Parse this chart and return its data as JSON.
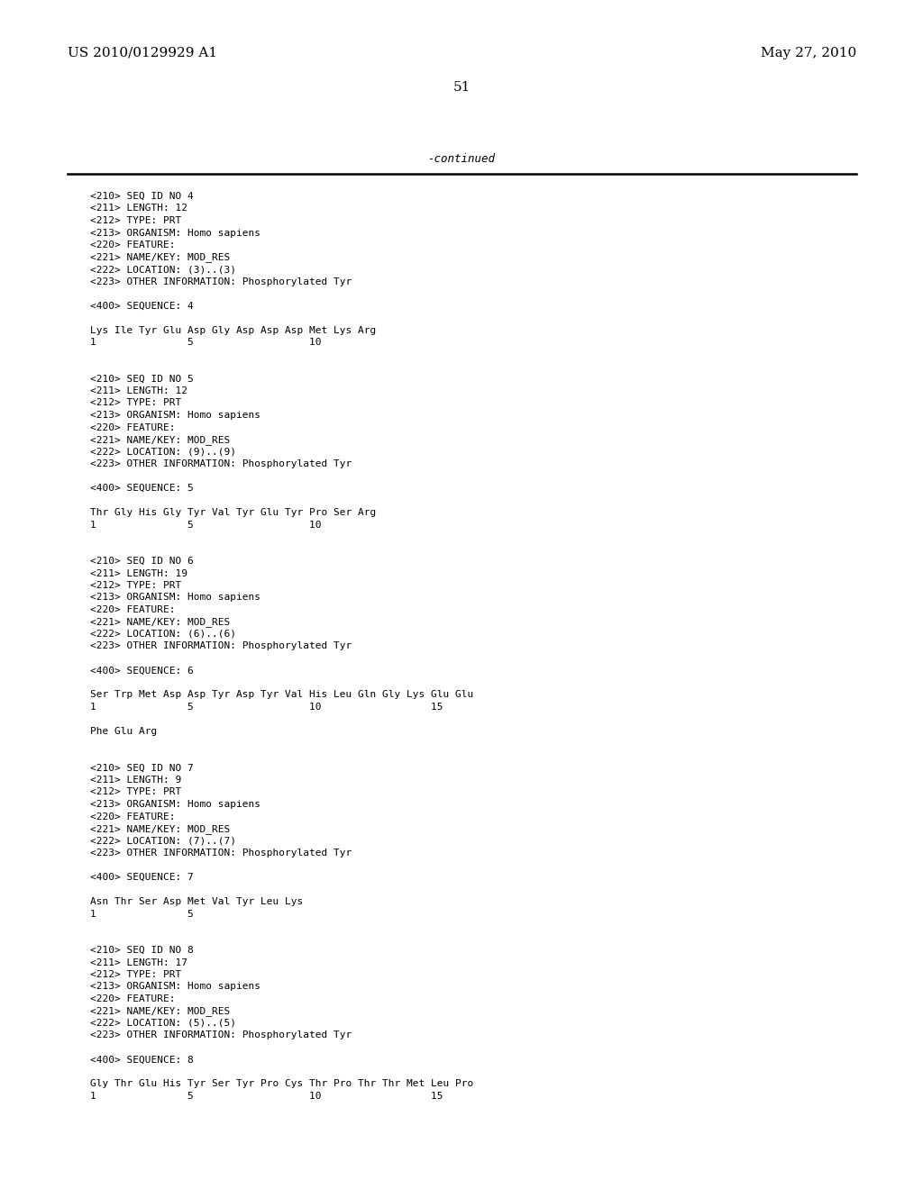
{
  "header_left": "US 2010/0129929 A1",
  "header_right": "May 27, 2010",
  "page_number": "51",
  "continued_text": "-continued",
  "background_color": "#ffffff",
  "text_color": "#000000",
  "lines": [
    "<210> SEQ ID NO 4",
    "<211> LENGTH: 12",
    "<212> TYPE: PRT",
    "<213> ORGANISM: Homo sapiens",
    "<220> FEATURE:",
    "<221> NAME/KEY: MOD_RES",
    "<222> LOCATION: (3)..(3)",
    "<223> OTHER INFORMATION: Phosphorylated Tyr",
    "",
    "<400> SEQUENCE: 4",
    "",
    "Lys Ile Tyr Glu Asp Gly Asp Asp Asp Met Lys Arg",
    "1               5                   10",
    "",
    "",
    "<210> SEQ ID NO 5",
    "<211> LENGTH: 12",
    "<212> TYPE: PRT",
    "<213> ORGANISM: Homo sapiens",
    "<220> FEATURE:",
    "<221> NAME/KEY: MOD_RES",
    "<222> LOCATION: (9)..(9)",
    "<223> OTHER INFORMATION: Phosphorylated Tyr",
    "",
    "<400> SEQUENCE: 5",
    "",
    "Thr Gly His Gly Tyr Val Tyr Glu Tyr Pro Ser Arg",
    "1               5                   10",
    "",
    "",
    "<210> SEQ ID NO 6",
    "<211> LENGTH: 19",
    "<212> TYPE: PRT",
    "<213> ORGANISM: Homo sapiens",
    "<220> FEATURE:",
    "<221> NAME/KEY: MOD_RES",
    "<222> LOCATION: (6)..(6)",
    "<223> OTHER INFORMATION: Phosphorylated Tyr",
    "",
    "<400> SEQUENCE: 6",
    "",
    "Ser Trp Met Asp Asp Tyr Asp Tyr Val His Leu Gln Gly Lys Glu Glu",
    "1               5                   10                  15",
    "",
    "Phe Glu Arg",
    "",
    "",
    "<210> SEQ ID NO 7",
    "<211> LENGTH: 9",
    "<212> TYPE: PRT",
    "<213> ORGANISM: Homo sapiens",
    "<220> FEATURE:",
    "<221> NAME/KEY: MOD_RES",
    "<222> LOCATION: (7)..(7)",
    "<223> OTHER INFORMATION: Phosphorylated Tyr",
    "",
    "<400> SEQUENCE: 7",
    "",
    "Asn Thr Ser Asp Met Val Tyr Leu Lys",
    "1               5",
    "",
    "",
    "<210> SEQ ID NO 8",
    "<211> LENGTH: 17",
    "<212> TYPE: PRT",
    "<213> ORGANISM: Homo sapiens",
    "<220> FEATURE:",
    "<221> NAME/KEY: MOD_RES",
    "<222> LOCATION: (5)..(5)",
    "<223> OTHER INFORMATION: Phosphorylated Tyr",
    "",
    "<400> SEQUENCE: 8",
    "",
    "Gly Thr Glu His Tyr Ser Tyr Pro Cys Thr Pro Thr Thr Met Leu Pro",
    "1               5                   10                  15"
  ]
}
